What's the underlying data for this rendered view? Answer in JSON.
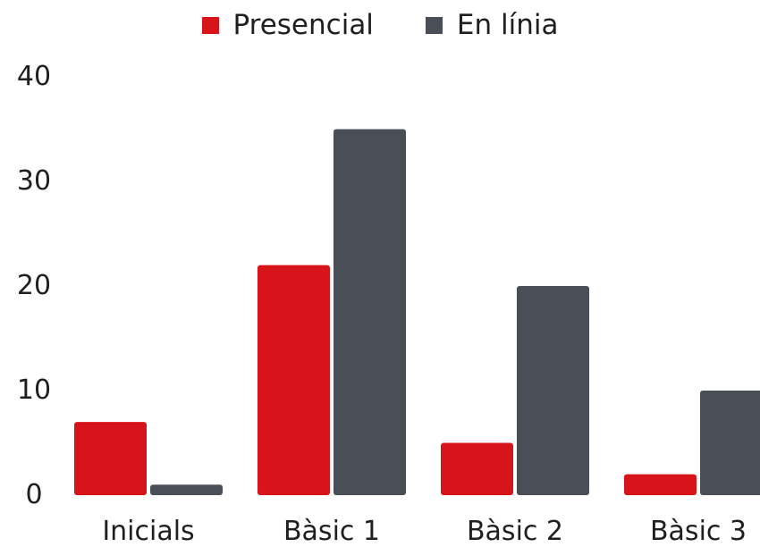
{
  "chart_data": {
    "type": "bar",
    "categories": [
      "Inicials",
      "Bàsic 1",
      "Bàsic 2",
      "Bàsic 3"
    ],
    "series": [
      {
        "name": "Presencial",
        "values": [
          7,
          22,
          5,
          2
        ],
        "color": "#d7141a"
      },
      {
        "name": "En línia",
        "values": [
          1,
          35,
          20,
          10
        ],
        "color": "#4a4f57"
      }
    ],
    "title": "",
    "xlabel": "",
    "ylabel": "",
    "ylim": [
      0,
      40
    ],
    "yticks": [
      "0",
      "10",
      "20",
      "30",
      "40"
    ],
    "grid": false,
    "legend_position": "top-center"
  }
}
